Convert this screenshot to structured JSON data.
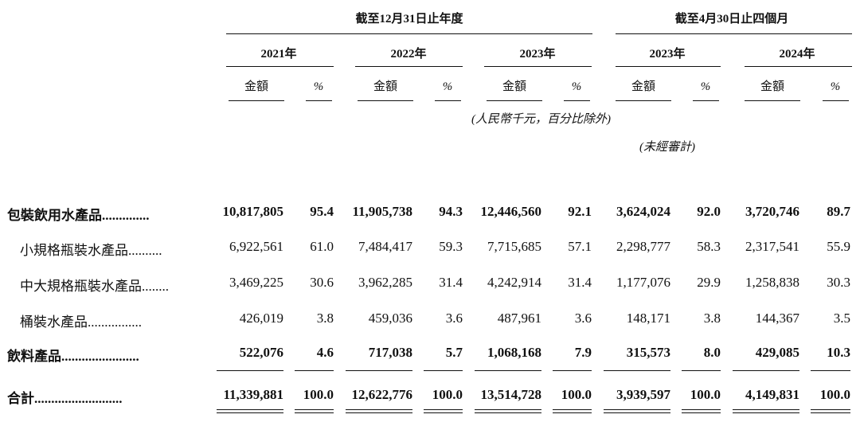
{
  "header": {
    "period_fy": "截至12月31日止年度",
    "period_4m": "截至4月30日止四個月",
    "years": [
      "2021年",
      "2022年",
      "2023年",
      "2023年",
      "2024年"
    ],
    "amount_label": "金額",
    "pct_label": "%",
    "unit_note": "(人民幣千元，百分比除外)",
    "unaudited_note": "(未經審計)"
  },
  "table": {
    "rows": [
      {
        "label": "包裝飲用水產品",
        "dots": "..............",
        "values": [
          "10,817,805",
          "95.4",
          "11,905,738",
          "94.3",
          "12,446,560",
          "92.1",
          "3,624,024",
          "92.0",
          "3,720,746",
          "89.7"
        ]
      },
      {
        "label": "小規格瓶裝水產品",
        "dots": "..........",
        "values": [
          "6,922,561",
          "61.0",
          "7,484,417",
          "59.3",
          "7,715,685",
          "57.1",
          "2,298,777",
          "58.3",
          "2,317,541",
          "55.9"
        ]
      },
      {
        "label": "中大規格瓶裝水產品",
        "dots": "........",
        "values": [
          "3,469,225",
          "30.6",
          "3,962,285",
          "31.4",
          "4,242,914",
          "31.4",
          "1,177,076",
          "29.9",
          "1,258,838",
          "30.3"
        ]
      },
      {
        "label": "桶裝水產品",
        "dots": "................",
        "values": [
          "426,019",
          "3.8",
          "459,036",
          "3.6",
          "487,961",
          "3.6",
          "148,171",
          "3.8",
          "144,367",
          "3.5"
        ]
      },
      {
        "label": "飲料產品",
        "dots": ".......................",
        "values": [
          "522,076",
          "4.6",
          "717,038",
          "5.7",
          "1,068,168",
          "7.9",
          "315,573",
          "8.0",
          "429,085",
          "10.3"
        ]
      },
      {
        "label": "合計",
        "dots": "..........................",
        "values": [
          "11,339,881",
          "100.0",
          "12,622,776",
          "100.0",
          "13,514,728",
          "100.0",
          "3,939,597",
          "100.0",
          "4,149,831",
          "100.0"
        ]
      }
    ]
  }
}
